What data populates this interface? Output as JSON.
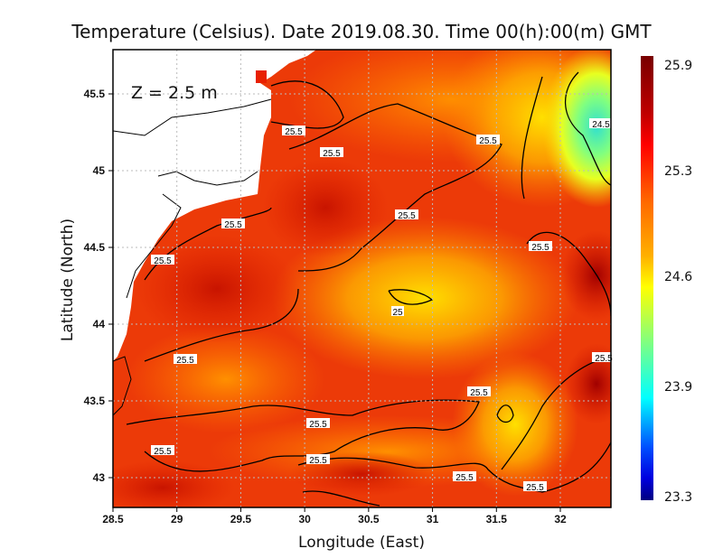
{
  "title": "Temperature (Celsius). Date 2019.08.30. Time 00(h):00(m) GMT",
  "depth_label": "Z = 2.5 m",
  "xlabel": "Longitude (East)",
  "ylabel": "Latitude (North)",
  "x_ticks": [
    "28.5",
    "29",
    "29.5",
    "30",
    "30.5",
    "31",
    "31.5",
    "32"
  ],
  "y_ticks": [
    "45.5",
    "45",
    "44.5",
    "44",
    "43.5",
    "43"
  ],
  "colorbar": {
    "ticks": [
      "25.9",
      "25.3",
      "24.6",
      "23.9",
      "23.3"
    ],
    "range": [
      23.3,
      25.9
    ],
    "colors": [
      "#7a0000",
      "#ff0000",
      "#ff7a00",
      "#ffff00",
      "#00ffff",
      "#0080ff",
      "#0000ff",
      "#000080"
    ]
  },
  "contour_labels": [
    "25.5",
    "25.5",
    "25.5",
    "25.5",
    "25.5",
    "25.5",
    "25.5",
    "25.5",
    "25.5",
    "25.5",
    "25.5",
    "25.5",
    "25.5",
    "25.5",
    "25.5",
    "25",
    "24.5"
  ],
  "chart_data": {
    "type": "heatmap",
    "title": "Temperature (Celsius). Date 2019.08.30. Time 00(h):00(m) GMT",
    "xlabel": "Longitude (East)",
    "ylabel": "Latitude (North)",
    "xlim": [
      28.5,
      32.4
    ],
    "ylim": [
      42.8,
      45.8
    ],
    "value_range": [
      23.3,
      25.9
    ],
    "contour_levels": [
      24.5,
      25,
      25.5
    ],
    "grid": true
  }
}
